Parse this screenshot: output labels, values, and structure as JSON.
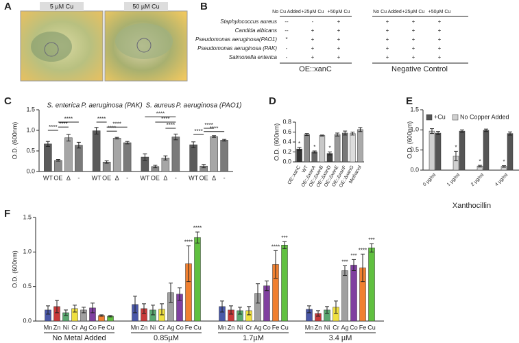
{
  "panel_labels": [
    "A",
    "B",
    "C",
    "D",
    "E",
    "F"
  ],
  "image_panel": {
    "labels": [
      "5 µM Cu",
      "50 µM Cu"
    ]
  },
  "table": {
    "column_headers": [
      "No Cu Added",
      "+25µM Cu",
      "+50µM Cu",
      "No Cu Added",
      "+25µM Cu",
      "+50µM Cu"
    ],
    "rows": [
      {
        "organism": "Staphylococcus aureus",
        "cells": [
          "--",
          "-",
          "+",
          "+",
          "+",
          "+"
        ]
      },
      {
        "organism": "Candida albicans",
        "cells": [
          "--",
          "+",
          "+",
          "+",
          "+",
          "+"
        ]
      },
      {
        "organism": "Pseudomonas aeruginosa(PAO1)",
        "cells": [
          "*",
          "+",
          "+",
          "+",
          "+",
          "+"
        ]
      },
      {
        "organism": "Pseudomonas aeruginosa (PAK)",
        "cells": [
          "-",
          "+",
          "+",
          "+",
          "+",
          "+"
        ]
      },
      {
        "organism": "Salmonella enterica",
        "cells": [
          "-",
          "+",
          "+",
          "+",
          "+",
          "+"
        ]
      }
    ],
    "groups": [
      "OE::xanC",
      "Negative Control"
    ]
  },
  "chart_data": [
    {
      "type": "bar",
      "y_label": "O.D. (600nm)",
      "categories": [
        "S. enterica",
        "P. aeruginosa (PAK)",
        "S. aureus",
        "P. aeruginosa (PAO1)"
      ],
      "series": [
        {
          "name": "WT",
          "color": "#5b5b5b",
          "values": [
            0.67,
            0.99,
            0.35,
            0.65
          ],
          "errors": [
            0.06,
            0.08,
            0.08,
            0.07
          ]
        },
        {
          "name": "OE",
          "color": "#8c8c8c",
          "values": [
            0.27,
            0.23,
            0.12,
            0.13
          ],
          "errors": [
            0.02,
            0.03,
            0.03,
            0.04
          ]
        },
        {
          "name": "Δ",
          "color": "#a6a6a6",
          "values": [
            0.82,
            0.81,
            0.33,
            0.85
          ],
          "errors": [
            0.08,
            0.02,
            0.05,
            0.02
          ]
        },
        {
          "name": "-",
          "color": "#7a7a7a",
          "values": [
            0.64,
            0.7,
            0.84,
            0.76
          ],
          "errors": [
            0.07,
            0.03,
            0.07,
            0.02
          ]
        }
      ],
      "significance": [
        [
          "****",
          "****",
          "****"
        ],
        [
          "****",
          "****",
          "****"
        ],
        [
          "****",
          "****",
          "****"
        ],
        [
          "****",
          "****",
          "****"
        ]
      ],
      "ylim": [
        0,
        1.5
      ],
      "yticks": [
        {
          "value": 0,
          "label": "0.0"
        },
        0.5,
        {
          "value": 1,
          "label": "1.0"
        },
        1.5
      ]
    },
    {
      "type": "bar",
      "y_label": "O.D. (600nm)",
      "categories": [
        "OE::xanC",
        "WT",
        "OE::ΔxanA",
        "OE::ΔxanB",
        "OE::ΔxanD",
        "OE::ΔxanE",
        "OE::ΔxanF",
        "OE::ΔxanG",
        "Methanol"
      ],
      "values": [
        0.26,
        0.55,
        0.2,
        0.53,
        0.17,
        0.55,
        0.58,
        0.57,
        0.65
      ],
      "errors": [
        0.03,
        0.02,
        0.02,
        0.01,
        0.03,
        0.03,
        0.04,
        0.03,
        0.04
      ],
      "colors": [
        "#333333",
        "#8c8c8c",
        "#666666",
        "#c8c8c8",
        "#444444",
        "#999999",
        "#777777",
        "#dddddd",
        "#aaaaaa"
      ],
      "annotations": [
        "*",
        null,
        "*",
        null,
        "*",
        null,
        null,
        null,
        null
      ],
      "ylim": [
        0,
        0.8
      ],
      "yticks": [
        {
          "value": 0,
          "label": "0.0"
        },
        0.2,
        0.4,
        0.6,
        0.8
      ]
    },
    {
      "type": "bar",
      "y_label": "O.D. (600nm)",
      "x_label": "Xanthocillin",
      "legend": "top-left",
      "categories": [
        "0 µg/ml",
        "1 µg/ml",
        "2 µg/ml",
        "4 µg/ml"
      ],
      "series": [
        {
          "name": "+Cu",
          "color": "#555555",
          "values": [
            0.92,
            0.97,
            0.99,
            0.91
          ],
          "errors": [
            0.04,
            0.03,
            0.03,
            0.04
          ]
        },
        {
          "name": "No Copper Added",
          "color": "#d0d0d0",
          "values": [
            0.97,
            0.35,
            0.1,
            0.09
          ],
          "errors": [
            0.06,
            0.12,
            0.02,
            0.02
          ],
          "annotations": [
            null,
            "*",
            "*",
            "*"
          ]
        }
      ],
      "ylim": [
        0,
        1.5
      ],
      "yticks": [
        {
          "value": 0,
          "label": "0.0"
        },
        0.5,
        {
          "value": 1,
          "label": "1.0"
        },
        1.5
      ]
    },
    {
      "type": "bar",
      "y_label": "O.D. (600nm)",
      "categories": [
        "No Metal Added",
        "0.85µM",
        "1.7µM",
        "3.4 µM"
      ],
      "series": [
        {
          "name": "Mn",
          "color": "#4a58a8",
          "values": [
            0.16,
            0.24,
            0.21,
            0.17
          ],
          "errors": [
            0.06,
            0.12,
            0.08,
            0.05
          ]
        },
        {
          "name": "Zn",
          "color": "#c83a3a",
          "values": [
            0.21,
            0.18,
            0.16,
            0.11
          ],
          "errors": [
            0.09,
            0.07,
            0.06,
            0.04
          ]
        },
        {
          "name": "Ni",
          "color": "#5aa870",
          "values": [
            0.12,
            0.16,
            0.15,
            0.16
          ],
          "errors": [
            0.04,
            0.07,
            0.05,
            0.05
          ]
        },
        {
          "name": "Cr",
          "color": "#f0e040",
          "values": [
            0.18,
            0.17,
            0.15,
            0.2
          ],
          "errors": [
            0.05,
            0.08,
            0.06,
            0.09
          ]
        },
        {
          "name": "Ag",
          "color": "#a0a0a0",
          "values": [
            0.16,
            0.41,
            0.4,
            0.73
          ],
          "errors": [
            0.04,
            0.14,
            0.14,
            0.07
          ],
          "annotations": [
            null,
            null,
            null,
            "***"
          ]
        },
        {
          "name": "Co",
          "color": "#8040a0",
          "values": [
            0.19,
            0.39,
            0.51,
            0.81
          ],
          "errors": [
            0.07,
            0.09,
            0.07,
            0.08
          ],
          "annotations": [
            null,
            null,
            null,
            "***"
          ]
        },
        {
          "name": "Fe",
          "color": "#f08030",
          "values": [
            0.08,
            0.83,
            0.82,
            0.77
          ],
          "errors": [
            0.01,
            0.26,
            0.2,
            0.2
          ],
          "annotations": [
            null,
            "****",
            "****",
            "****"
          ]
        },
        {
          "name": "Cu",
          "color": "#60c040",
          "values": [
            0.07,
            1.21,
            1.1,
            1.06
          ],
          "errors": [
            0.01,
            0.08,
            0.05,
            0.06
          ],
          "annotations": [
            null,
            "****",
            "***",
            "***"
          ]
        }
      ],
      "ylim": [
        0,
        1.5
      ],
      "yticks": [
        {
          "value": 0,
          "label": "0.0"
        },
        0.5,
        {
          "value": 1,
          "label": "1.0"
        },
        1.5
      ]
    }
  ]
}
